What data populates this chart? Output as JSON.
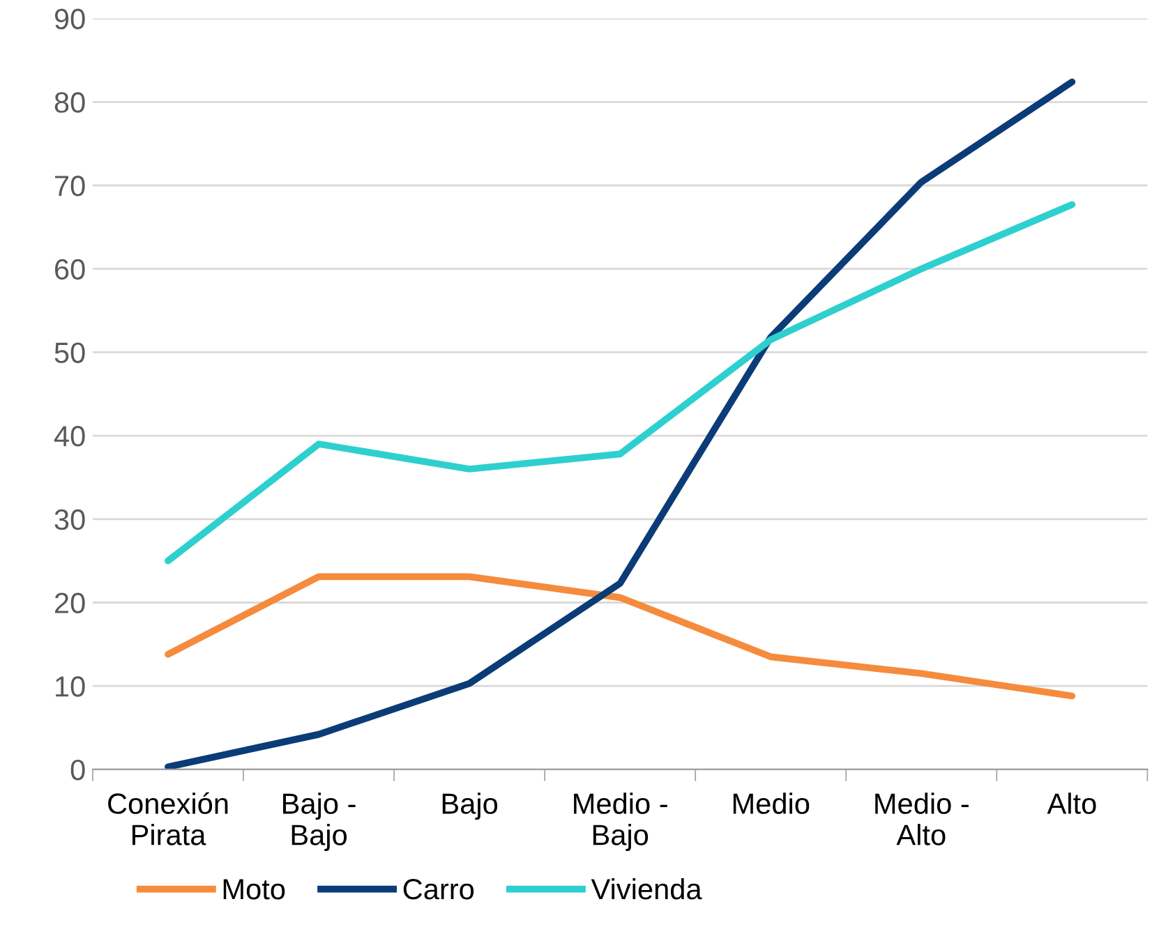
{
  "chart_data": {
    "type": "line",
    "categories": [
      "Conexión\nPirata",
      "Bajo -\nBajo",
      "Bajo",
      "Medio -\nBajo",
      "Medio",
      "Medio -\nAlto",
      "Alto"
    ],
    "series": [
      {
        "name": "Moto",
        "color": "#f58b3d",
        "values": [
          13.8,
          23.1,
          23.1,
          20.6,
          13.5,
          11.5,
          8.8
        ]
      },
      {
        "name": "Carro",
        "color": "#0b3c78",
        "values": [
          0.3,
          4.2,
          10.3,
          22.3,
          51.8,
          70.4,
          82.4
        ]
      },
      {
        "name": "Vivienda",
        "color": "#2ecfcf",
        "values": [
          25,
          39,
          36,
          37.8,
          51.5,
          60,
          67.7
        ]
      }
    ],
    "ylim": [
      0,
      90
    ],
    "yticks": [
      0,
      10,
      20,
      30,
      40,
      50,
      60,
      70,
      80,
      90
    ],
    "grid": "y",
    "legend": "bottom",
    "marker": "none",
    "line_style": "solid"
  }
}
